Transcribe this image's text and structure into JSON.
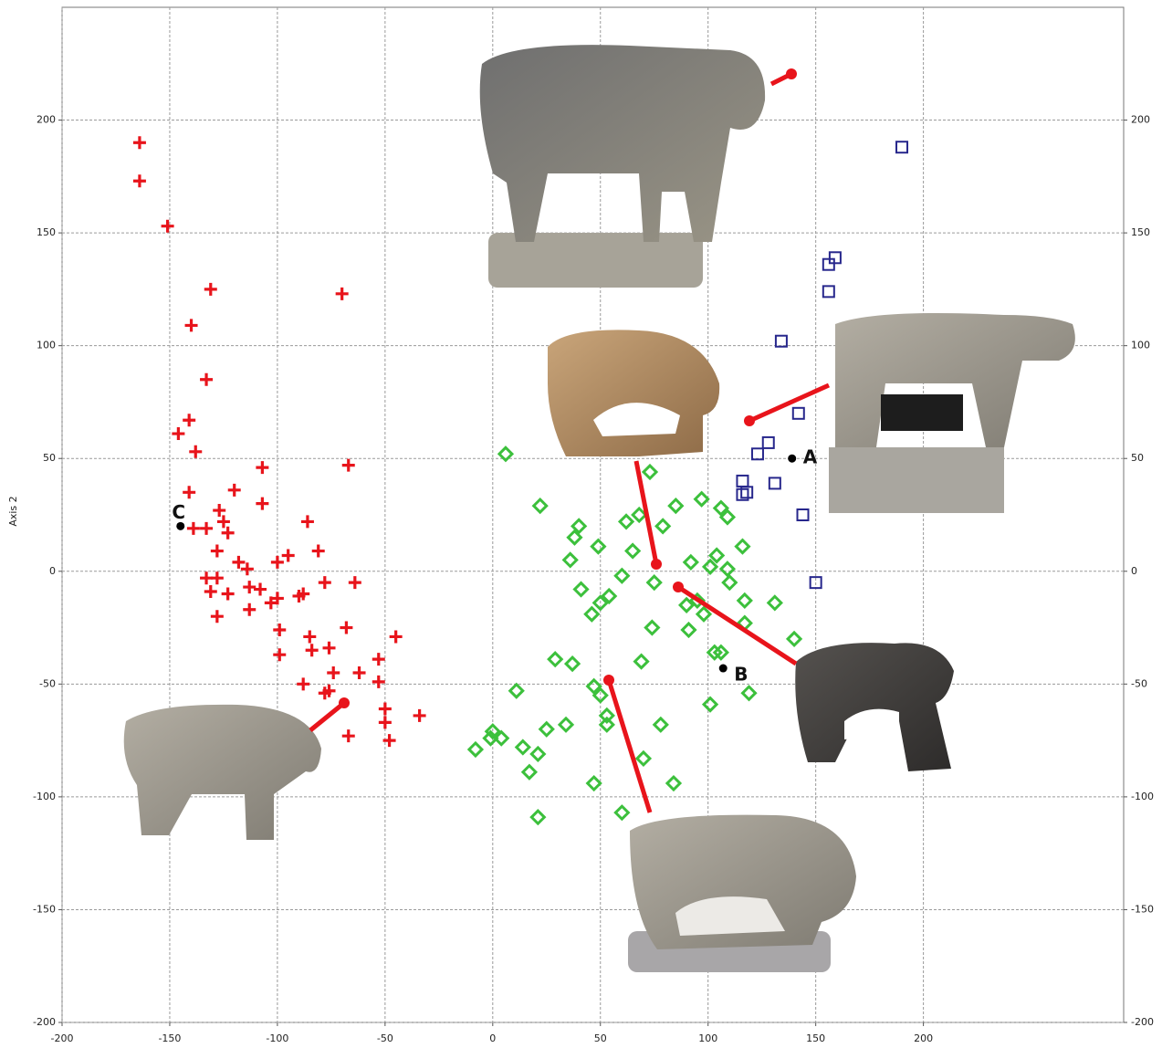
{
  "chart_data": {
    "type": "scatter",
    "y_label": "Axis 2",
    "xlim": [
      -200,
      293
    ],
    "ylim": [
      -200,
      250
    ],
    "xticks": [
      -200,
      -150,
      -100,
      -50,
      0,
      50,
      100,
      150,
      200
    ],
    "yticks": [
      -200,
      -150,
      -100,
      -50,
      0,
      50,
      100,
      150,
      200
    ],
    "grid": true,
    "series": [
      {
        "color": "#e8141b",
        "marker": "cross",
        "x": [
          -164,
          -164,
          -151,
          -131,
          -70,
          -140,
          -133,
          -141,
          -146,
          -138,
          -141,
          -107,
          -67,
          -120,
          -107,
          -127,
          -125,
          -123,
          -139,
          -133,
          -128,
          -86,
          -118,
          -114,
          -81,
          -95,
          -100,
          -133,
          -128,
          -131,
          -123,
          -113,
          -108,
          -103,
          -100,
          -113,
          -128,
          -88,
          -90,
          -78,
          -64,
          -99,
          -68,
          -85,
          -84,
          -76,
          -99,
          -45,
          -53,
          -62,
          -74,
          -88,
          -78,
          -76,
          -53,
          -50,
          -34,
          -50,
          -48,
          -67
        ],
        "y": [
          190,
          173,
          153,
          125,
          123,
          109,
          85,
          67,
          61,
          53,
          35,
          46,
          47,
          36,
          30,
          27,
          22,
          17,
          19,
          19,
          9,
          22,
          4,
          1,
          9,
          7,
          4,
          -3,
          -3,
          -9,
          -10,
          -7,
          -8,
          -14,
          -12,
          -17,
          -20,
          -10,
          -11,
          -5,
          -5,
          -26,
          -25,
          -29,
          -35,
          -34,
          -37,
          -29,
          -39,
          -45,
          -45,
          -50,
          -54,
          -53,
          -49,
          -61,
          -64,
          -67,
          -75,
          -73
        ]
      },
      {
        "color": "#3cc03c",
        "marker": "diamond",
        "x": [
          6,
          22,
          73,
          85,
          97,
          106,
          62,
          68,
          79,
          109,
          40,
          38,
          49,
          36,
          65,
          92,
          104,
          116,
          101,
          109,
          75,
          60,
          41,
          110,
          95,
          90,
          98,
          50,
          46,
          54,
          117,
          131,
          74,
          91,
          117,
          140,
          29,
          37,
          69,
          103,
          106,
          11,
          47,
          50,
          53,
          53,
          78,
          101,
          119,
          0,
          -1,
          4,
          -8,
          14,
          21,
          25,
          34,
          17,
          70,
          47,
          84,
          21,
          60
        ],
        "y": [
          52,
          29,
          44,
          29,
          32,
          28,
          22,
          25,
          20,
          24,
          20,
          15,
          11,
          5,
          9,
          4,
          7,
          11,
          2,
          1,
          -5,
          -2,
          -8,
          -5,
          -13,
          -15,
          -19,
          -14,
          -19,
          -11,
          -13,
          -14,
          -25,
          -26,
          -23,
          -30,
          -39,
          -41,
          -40,
          -36,
          -36,
          -53,
          -51,
          -55,
          -64,
          -68,
          -68,
          -59,
          -54,
          -71,
          -74,
          -74,
          -79,
          -78,
          -81,
          -70,
          -68,
          -89,
          -83,
          -94,
          -94,
          -109,
          -107
        ]
      },
      {
        "color": "#27278c",
        "marker": "square",
        "x": [
          190,
          159,
          156,
          156,
          134,
          142,
          128,
          123,
          131,
          116,
          118,
          116,
          144,
          150
        ],
        "y": [
          188,
          139,
          136,
          124,
          102,
          70,
          57,
          52,
          39,
          40,
          35,
          34,
          25,
          -5
        ]
      }
    ],
    "points": [
      {
        "label": "A",
        "x": 139,
        "y": 50
      },
      {
        "label": "B",
        "x": 107,
        "y": -43
      },
      {
        "label": "C",
        "x": -145,
        "y": 20
      }
    ]
  }
}
